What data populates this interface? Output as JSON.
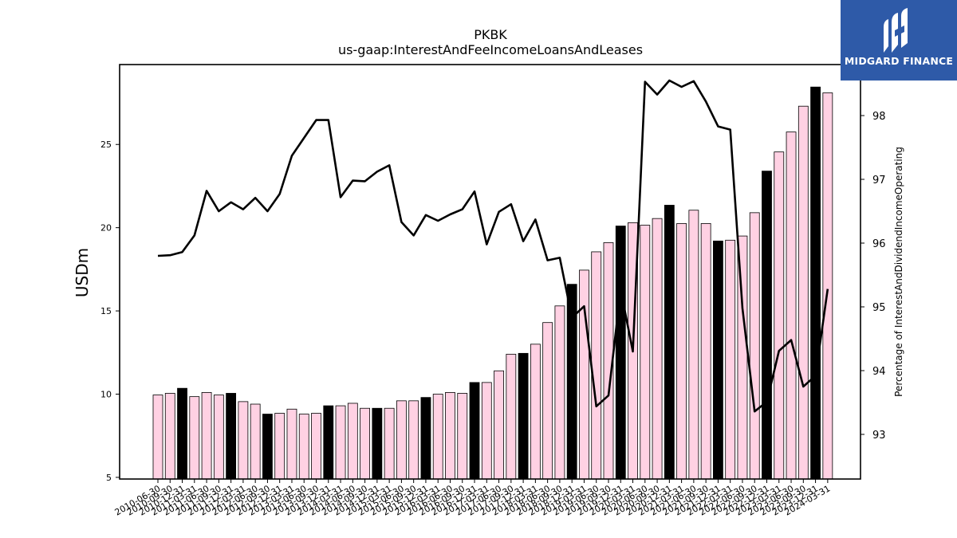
{
  "chart_data": {
    "type": "bar",
    "title": "PKBK",
    "subtitle": "us-gaap:InterestAndFeeIncomeLoansAndLeases",
    "ylabel": "USDm",
    "y2label": "Percentage of InterestAndDividendIncomeOperating",
    "ylim": [
      4.9,
      29.8
    ],
    "y2lim": [
      92.3,
      98.8
    ],
    "yticks": [
      5,
      10,
      15,
      20,
      25
    ],
    "y2ticks": [
      93,
      94,
      95,
      96,
      97,
      98
    ],
    "categories": [
      "2010-06-30",
      "2010-09-30",
      "2010-12-31",
      "2011-03-31",
      "2011-06-30",
      "2011-09-30",
      "2011-12-31",
      "2012-03-31",
      "2012-06-30",
      "2012-09-30",
      "2012-12-31",
      "2013-03-31",
      "2013-06-30",
      "2013-09-30",
      "2013-12-31",
      "2014-03-31",
      "2014-06-30",
      "2014-09-30",
      "2014-12-31",
      "2015-03-31",
      "2015-06-30",
      "2015-09-30",
      "2015-12-31",
      "2016-03-31",
      "2016-06-30",
      "2016-09-30",
      "2016-12-31",
      "2017-03-31",
      "2017-06-30",
      "2017-09-30",
      "2017-12-31",
      "2018-03-31",
      "2018-06-30",
      "2018-09-30",
      "2018-12-31",
      "2019-03-31",
      "2019-06-30",
      "2019-09-30",
      "2019-12-31",
      "2020-03-31",
      "2020-06-30",
      "2020-09-30",
      "2020-12-31",
      "2021-03-31",
      "2021-06-30",
      "2021-09-30",
      "2021-12-31",
      "2022-03-31",
      "2022-06-30",
      "2022-09-30",
      "2022-12-31",
      "2023-03-31",
      "2023-06-30",
      "2023-09-30",
      "2023-12-31",
      "2024-03-31"
    ],
    "series": [
      {
        "name": "InterestAndFeeIncomeLoansAndLeases",
        "kind": "bar",
        "values": [
          9.95,
          10.05,
          10.35,
          9.85,
          10.1,
          9.95,
          10.05,
          9.55,
          9.4,
          8.8,
          8.85,
          9.1,
          8.8,
          8.85,
          9.3,
          9.3,
          9.45,
          9.15,
          9.15,
          9.15,
          9.6,
          9.6,
          9.8,
          10.0,
          10.1,
          10.05,
          10.7,
          10.7,
          11.4,
          12.4,
          12.45,
          13.0,
          14.3,
          15.3,
          16.6,
          17.45,
          18.55,
          19.1,
          20.1,
          20.3,
          20.15,
          20.55,
          21.35,
          20.25,
          21.05,
          20.25,
          19.2,
          19.25,
          19.5,
          20.9,
          23.4,
          24.55,
          25.75,
          27.3,
          28.45,
          28.1
        ],
        "highlight": [
          false,
          false,
          true,
          false,
          false,
          false,
          true,
          false,
          false,
          true,
          false,
          false,
          false,
          false,
          true,
          false,
          false,
          false,
          true,
          false,
          false,
          false,
          true,
          false,
          false,
          false,
          true,
          false,
          false,
          false,
          true,
          false,
          false,
          false,
          true,
          false,
          false,
          false,
          true,
          false,
          false,
          false,
          true,
          false,
          false,
          false,
          true,
          false,
          false,
          false,
          true,
          false,
          false,
          false,
          true,
          false
        ]
      },
      {
        "name": "Percentage of InterestAndDividendIncomeOperating",
        "kind": "line",
        "axis": "right",
        "values": [
          95.8,
          95.81,
          95.86,
          96.12,
          96.82,
          96.5,
          96.64,
          96.53,
          96.71,
          96.5,
          96.77,
          97.37,
          97.65,
          97.93,
          97.93,
          96.72,
          96.98,
          96.97,
          97.12,
          97.22,
          96.33,
          96.12,
          96.44,
          96.35,
          96.45,
          96.53,
          96.81,
          95.98,
          96.49,
          96.61,
          96.03,
          96.37,
          95.73,
          95.77,
          94.83,
          95.01,
          93.44,
          93.61,
          95.27,
          94.3,
          98.53,
          98.33,
          98.55,
          98.45,
          98.54,
          98.22,
          97.83,
          97.78,
          94.98,
          93.36,
          93.51,
          94.31,
          94.48,
          93.75,
          93.92,
          95.28
        ]
      }
    ],
    "colors": {
      "bar": "#ffd1e3",
      "bar_highlight": "#000000",
      "line": "#000000"
    },
    "grid": false,
    "legend": "none"
  },
  "logo": {
    "text": "MIDGARD FINANCE",
    "background": "#2e5aa8"
  }
}
